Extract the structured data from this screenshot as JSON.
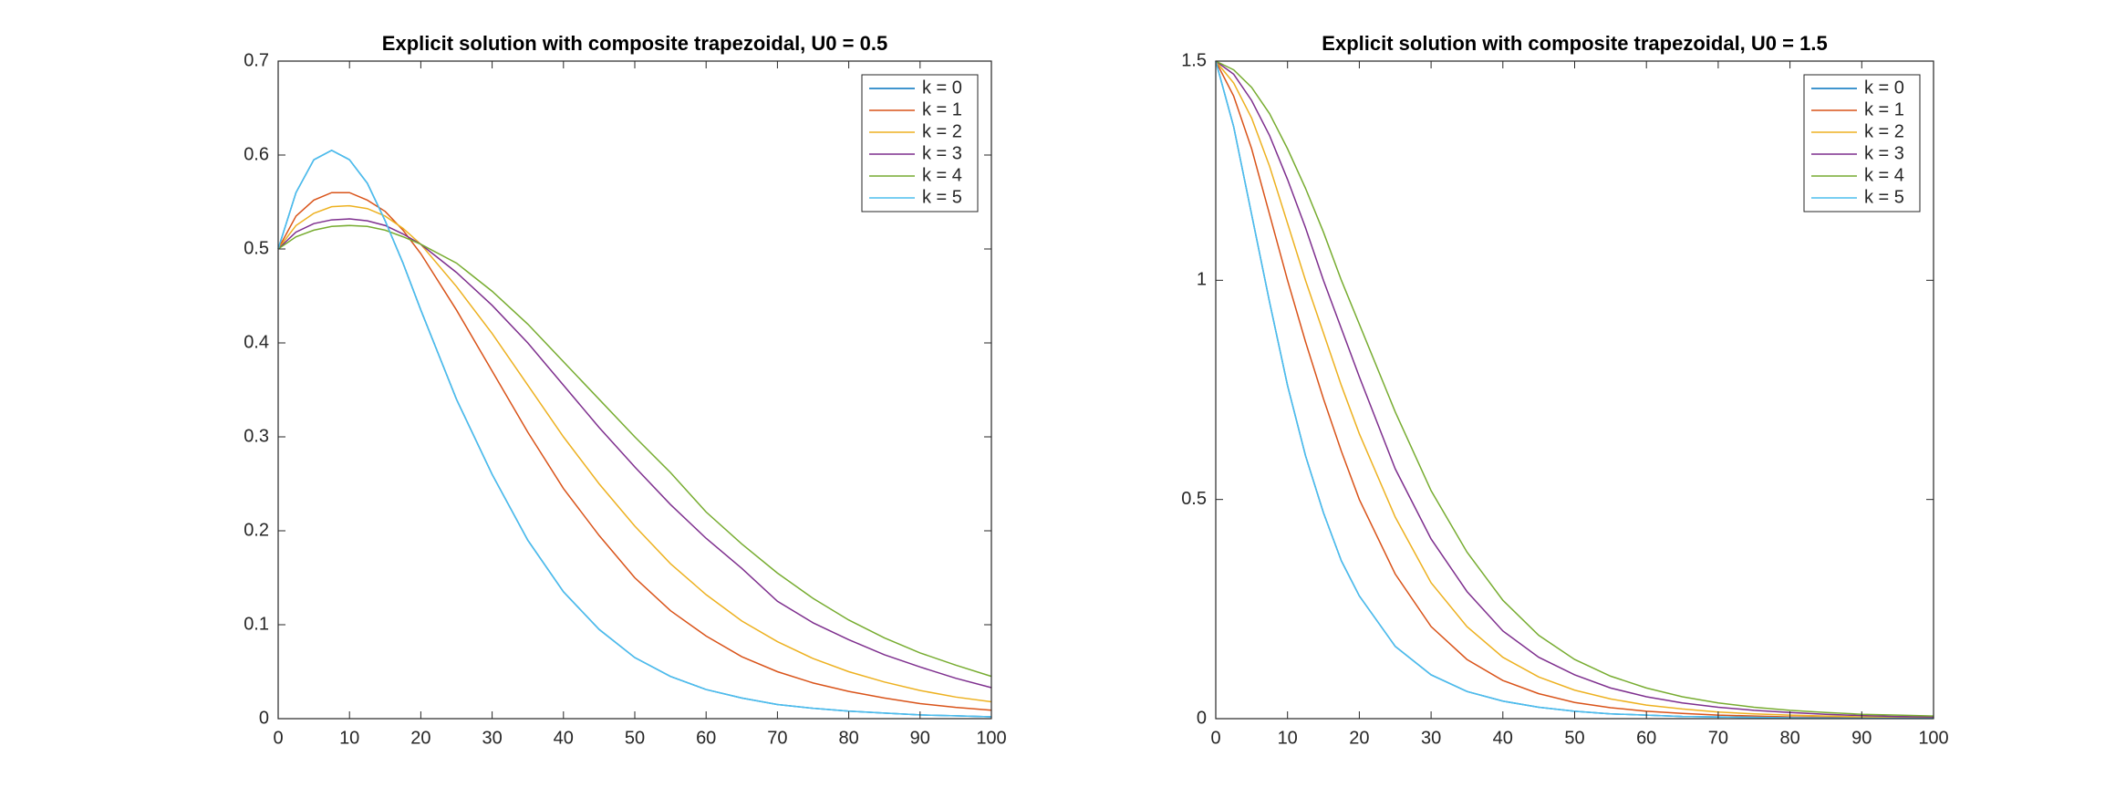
{
  "chart_data": [
    {
      "type": "line",
      "title": "Explicit solution with composite trapezoidal, U0 = 0.5",
      "x": [
        0,
        2.5,
        5,
        7.5,
        10,
        12.5,
        15,
        17.5,
        20,
        25,
        30,
        35,
        40,
        45,
        50,
        55,
        60,
        65,
        70,
        75,
        80,
        85,
        90,
        95,
        100
      ],
      "series": [
        {
          "name": "k = 0",
          "color": "#0072BD",
          "values": [
            0.5,
            0.56,
            0.595,
            0.605,
            0.595,
            0.57,
            0.53,
            0.485,
            0.435,
            0.34,
            0.26,
            0.19,
            0.135,
            0.095,
            0.065,
            0.045,
            0.031,
            0.022,
            0.015,
            0.011,
            0.008,
            0.006,
            0.004,
            0.003,
            0.002
          ]
        },
        {
          "name": "k = 1",
          "color": "#D95319",
          "values": [
            0.5,
            0.535,
            0.552,
            0.56,
            0.56,
            0.552,
            0.54,
            0.52,
            0.495,
            0.435,
            0.37,
            0.305,
            0.245,
            0.195,
            0.15,
            0.115,
            0.088,
            0.066,
            0.05,
            0.038,
            0.029,
            0.022,
            0.016,
            0.012,
            0.009
          ]
        },
        {
          "name": "k = 2",
          "color": "#EDB120",
          "values": [
            0.5,
            0.525,
            0.538,
            0.545,
            0.546,
            0.543,
            0.535,
            0.522,
            0.505,
            0.46,
            0.41,
            0.355,
            0.3,
            0.25,
            0.205,
            0.165,
            0.132,
            0.104,
            0.082,
            0.064,
            0.05,
            0.039,
            0.03,
            0.023,
            0.018
          ]
        },
        {
          "name": "k = 3",
          "color": "#7E2F8E",
          "values": [
            0.5,
            0.518,
            0.527,
            0.531,
            0.532,
            0.53,
            0.525,
            0.516,
            0.505,
            0.475,
            0.44,
            0.4,
            0.355,
            0.31,
            0.268,
            0.228,
            0.192,
            0.16,
            0.125,
            0.102,
            0.084,
            0.068,
            0.055,
            0.043,
            0.033
          ]
        },
        {
          "name": "k = 4",
          "color": "#77AC30",
          "values": [
            0.5,
            0.513,
            0.52,
            0.524,
            0.525,
            0.524,
            0.52,
            0.513,
            0.505,
            0.485,
            0.455,
            0.42,
            0.38,
            0.34,
            0.3,
            0.262,
            0.22,
            0.186,
            0.155,
            0.128,
            0.105,
            0.086,
            0.07,
            0.057,
            0.045
          ]
        },
        {
          "name": "k = 5",
          "color": "#4DBEEE",
          "values": [
            0.5,
            0.56,
            0.595,
            0.605,
            0.595,
            0.57,
            0.53,
            0.485,
            0.435,
            0.34,
            0.26,
            0.19,
            0.135,
            0.095,
            0.065,
            0.045,
            0.031,
            0.022,
            0.015,
            0.011,
            0.008,
            0.006,
            0.004,
            0.003,
            0.002
          ]
        }
      ],
      "xlim": [
        0,
        100
      ],
      "xticks": [
        0,
        10,
        20,
        30,
        40,
        50,
        60,
        70,
        80,
        90,
        100
      ],
      "ylim": [
        0,
        0.7
      ],
      "yticks": [
        0,
        0.1,
        0.2,
        0.3,
        0.4,
        0.5,
        0.6,
        0.7
      ],
      "legend": "northeast"
    },
    {
      "type": "line",
      "title": "Explicit solution with composite trapezoidal, U0 = 1.5",
      "x": [
        0,
        2.5,
        5,
        7.5,
        10,
        12.5,
        15,
        17.5,
        20,
        25,
        30,
        35,
        40,
        45,
        50,
        55,
        60,
        65,
        70,
        75,
        80,
        85,
        90,
        95,
        100
      ],
      "series": [
        {
          "name": "k = 0",
          "color": "#0072BD",
          "values": [
            1.5,
            1.35,
            1.15,
            0.95,
            0.76,
            0.6,
            0.47,
            0.36,
            0.28,
            0.165,
            0.1,
            0.062,
            0.04,
            0.026,
            0.017,
            0.011,
            0.008,
            0.005,
            0.004,
            0.003,
            0.002,
            0.0015,
            0.001,
            0.0008,
            0.0005
          ]
        },
        {
          "name": "k = 1",
          "color": "#D95319",
          "values": [
            1.5,
            1.42,
            1.3,
            1.15,
            1.0,
            0.86,
            0.73,
            0.61,
            0.5,
            0.33,
            0.21,
            0.135,
            0.087,
            0.057,
            0.037,
            0.025,
            0.017,
            0.012,
            0.008,
            0.006,
            0.004,
            0.003,
            0.002,
            0.0015,
            0.001
          ]
        },
        {
          "name": "k = 2",
          "color": "#EDB120",
          "values": [
            1.5,
            1.45,
            1.37,
            1.26,
            1.13,
            1.0,
            0.88,
            0.76,
            0.65,
            0.46,
            0.31,
            0.21,
            0.14,
            0.095,
            0.065,
            0.045,
            0.031,
            0.022,
            0.015,
            0.011,
            0.008,
            0.006,
            0.004,
            0.003,
            0.002
          ]
        },
        {
          "name": "k = 3",
          "color": "#7E2F8E",
          "values": [
            1.5,
            1.47,
            1.41,
            1.33,
            1.23,
            1.12,
            1.0,
            0.89,
            0.78,
            0.57,
            0.41,
            0.29,
            0.2,
            0.14,
            0.1,
            0.07,
            0.05,
            0.036,
            0.026,
            0.019,
            0.014,
            0.01,
            0.007,
            0.005,
            0.004
          ]
        },
        {
          "name": "k = 4",
          "color": "#77AC30",
          "values": [
            1.5,
            1.48,
            1.44,
            1.38,
            1.3,
            1.21,
            1.11,
            1.0,
            0.9,
            0.7,
            0.52,
            0.38,
            0.27,
            0.19,
            0.135,
            0.097,
            0.07,
            0.05,
            0.036,
            0.026,
            0.019,
            0.014,
            0.01,
            0.008,
            0.006
          ]
        },
        {
          "name": "k = 5",
          "color": "#4DBEEE",
          "values": [
            1.5,
            1.35,
            1.15,
            0.95,
            0.76,
            0.6,
            0.47,
            0.36,
            0.28,
            0.165,
            0.1,
            0.062,
            0.04,
            0.026,
            0.017,
            0.011,
            0.008,
            0.005,
            0.004,
            0.003,
            0.002,
            0.0015,
            0.001,
            0.0008,
            0.0005
          ]
        }
      ],
      "xlim": [
        0,
        100
      ],
      "xticks": [
        0,
        10,
        20,
        30,
        40,
        50,
        60,
        70,
        80,
        90,
        100
      ],
      "ylim": [
        0,
        1.5
      ],
      "yticks": [
        0,
        0.5,
        1,
        1.5
      ],
      "legend": "northeast"
    }
  ]
}
